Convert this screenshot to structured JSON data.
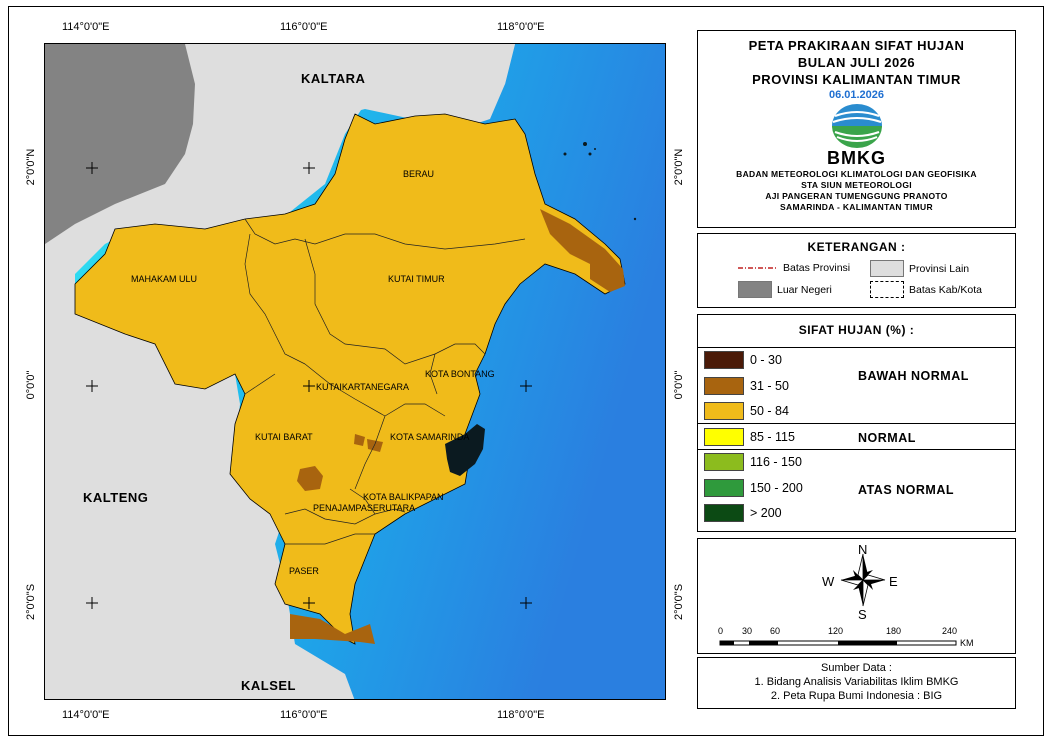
{
  "title": {
    "line1": "PETA PRAKIRAAN SIFAT HUJAN",
    "line2": "BULAN JULI 2026",
    "line3": "PROVINSI KALIMANTAN TIMUR",
    "date": "06.01.2026",
    "logo_text": "BMKG",
    "org1": "BADAN METEOROLOGI KLIMATOLOGI DAN GEOFISIKA",
    "org2": "STA SIUN METEOROLOGI",
    "org3": "AJI PANGERAN TUMENGGUNG PRANOTO",
    "org4": "SAMARINDA - KALIMANTAN TIMUR"
  },
  "keterangan": {
    "title": "KETERANGAN :",
    "batas_provinsi": "Batas Provinsi",
    "provinsi_lain": "Provinsi Lain",
    "luar_negeri": "Luar Negeri",
    "batas_kab": "Batas Kab/Kota"
  },
  "sifat_hujan": {
    "title": "SIFAT HUJAN (%) :",
    "classes": [
      {
        "label": "0 - 30",
        "color": "#4a1a08"
      },
      {
        "label": "31 - 50",
        "color": "#a8640f"
      },
      {
        "label": "50 - 84",
        "color": "#f0bb1a"
      },
      {
        "label": "85 - 115",
        "color": "#ffff00"
      },
      {
        "label": "116 - 150",
        "color": "#8cbc1e"
      },
      {
        "label": "150 - 200",
        "color": "#2f9a3c"
      },
      {
        "label": "> 200",
        "color": "#0c4a14"
      }
    ],
    "cat_bawah": "BAWAH NORMAL",
    "cat_normal": "NORMAL",
    "cat_atas": "ATAS NORMAL"
  },
  "compass": {
    "n": "N",
    "s": "S",
    "e": "E",
    "w": "W"
  },
  "scale": {
    "ticks": [
      "0",
      "30",
      "60",
      "120",
      "180",
      "240"
    ],
    "unit": "KM"
  },
  "sumber": {
    "title": "Sumber Data :",
    "line1": "1. Bidang Analisis Variabilitas Iklim BMKG",
    "line2": "2. Peta Rupa Bumi Indonesia : BIG"
  },
  "map": {
    "lon_labels": [
      "114°0'0\"E",
      "116°0'0\"E",
      "118°0'0\"E"
    ],
    "lat_labels": [
      "2°0'0\"N",
      "0°0'0\"",
      "2°0'0\"S"
    ],
    "regions": {
      "kaltara": "KALTARA",
      "kalteng": "KALTENG",
      "kalsel": "KALSEL"
    },
    "places": {
      "berau": "BERAU",
      "mahakam_ulu": "MAHAKAM ULU",
      "kutai_timur": "KUTAI TIMUR",
      "kota_bontang": "KOTA BONTANG",
      "kutai_kartanegara": "KUTAIKARTANEGARA",
      "kutai_barat": "KUTAI BARAT",
      "kota_samarinda": "KOTA SAMARINDA",
      "kota_balikpapan": "KOTA BALIKPAPAN",
      "penajam": "PENAJAMPASERUTARA",
      "paser": "PASER"
    },
    "colors": {
      "sea_light": "#2fe0f5",
      "sea_dark": "#1e8ee6",
      "other_province": "#dedede",
      "foreign": "#838383",
      "land": "#f0bb1a",
      "below": "#a8640f"
    }
  }
}
